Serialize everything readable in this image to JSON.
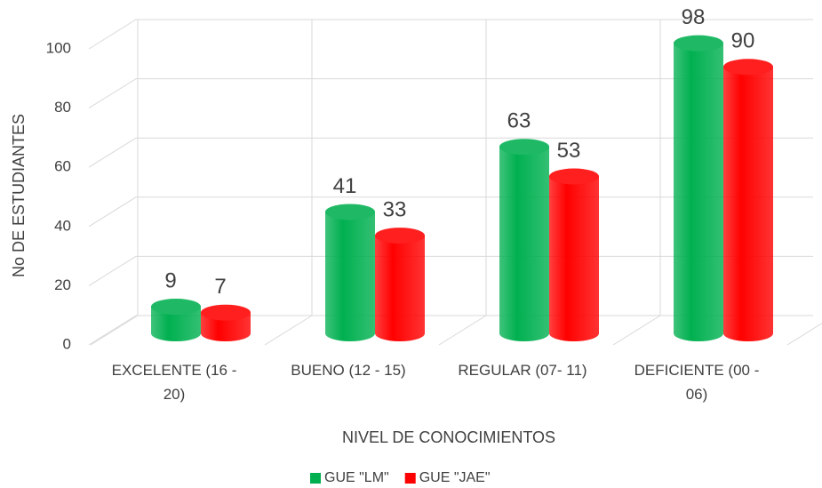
{
  "chart_data": {
    "type": "bar",
    "categories": [
      "EXCELENTE (16 - 20)",
      "BUENO (12 - 15)",
      "REGULAR (07- 11)",
      "DEFICIENTE (00 - 06)"
    ],
    "series": [
      {
        "name": "GUE \"LM\"",
        "color": "#00b050",
        "values": [
          9,
          41,
          63,
          98
        ]
      },
      {
        "name": "GUE \"JAE\"",
        "color": "#ff0000",
        "values": [
          7,
          33,
          53,
          90
        ]
      }
    ],
    "x_label": "NIVEL DE CONOCIMIENTOS",
    "y_label": "No DE ESTUDIANTES",
    "ylim": [
      0,
      100
    ],
    "yticks": [
      0,
      20,
      40,
      60,
      80,
      100
    ],
    "grid": true,
    "legend": "bottom"
  }
}
